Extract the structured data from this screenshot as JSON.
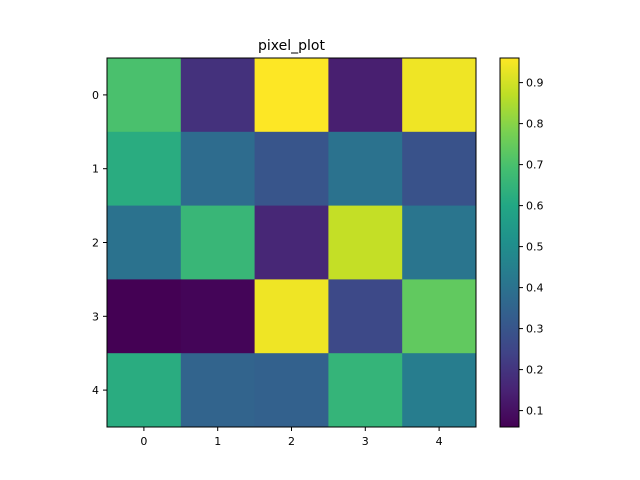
{
  "chart_data": {
    "type": "heatmap",
    "title": "pixel_plot",
    "x_ticks": [
      "0",
      "1",
      "2",
      "3",
      "4"
    ],
    "y_ticks": [
      "0",
      "1",
      "2",
      "3",
      "4"
    ],
    "values": [
      [
        0.7,
        0.19,
        0.96,
        0.14,
        0.94
      ],
      [
        0.62,
        0.38,
        0.3,
        0.4,
        0.29
      ],
      [
        0.4,
        0.66,
        0.16,
        0.88,
        0.41
      ],
      [
        0.06,
        0.07,
        0.94,
        0.26,
        0.74
      ],
      [
        0.62,
        0.35,
        0.34,
        0.65,
        0.44
      ]
    ],
    "colormap": "viridis",
    "clim": [
      0.06,
      0.96
    ],
    "colorbar_ticks": [
      0.1,
      0.2,
      0.3,
      0.4,
      0.5,
      0.6,
      0.7,
      0.8,
      0.9
    ],
    "colorbar_tick_labels": [
      "0.1",
      "0.2",
      "0.3",
      "0.4",
      "0.5",
      "0.6",
      "0.7",
      "0.8",
      "0.9"
    ],
    "colorbar_position": "right",
    "grid": false
  }
}
